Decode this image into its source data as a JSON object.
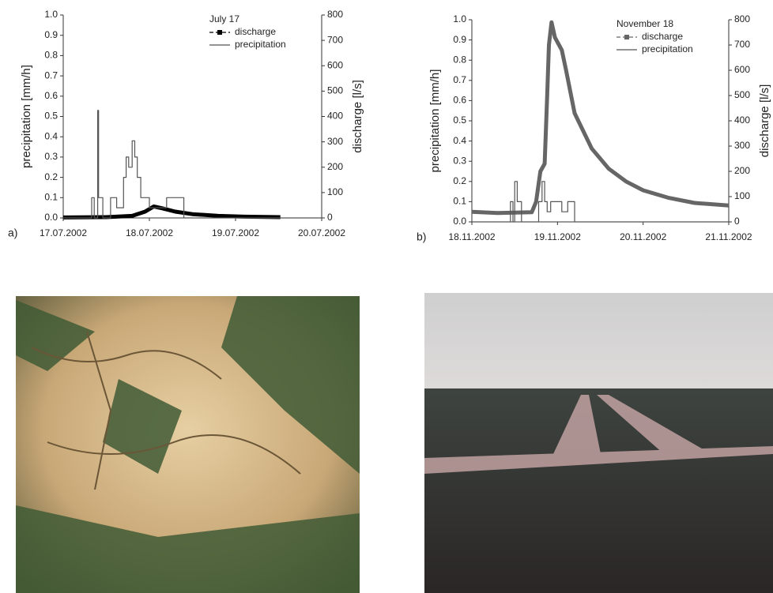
{
  "chart_data": [
    {
      "type": "line",
      "title": "July 17",
      "panel_label": "a)",
      "ylabel": "precipitation [mm/h]",
      "y2label": "discharge  [l/s]",
      "xlim": [
        0,
        3
      ],
      "xticks": [
        {
          "value": 0,
          "label": "17.07.2002"
        },
        {
          "value": 1,
          "label": "18.07.2002"
        },
        {
          "value": 2,
          "label": "19.07.2002"
        },
        {
          "value": 3,
          "label": "20.07.2002"
        }
      ],
      "ylim": [
        0,
        1
      ],
      "yticks": [
        {
          "value": 0,
          "label": "0.0"
        },
        0.1,
        0.2,
        0.3,
        0.4,
        0.5,
        0.6,
        0.7,
        0.8,
        0.9,
        {
          "value": 1,
          "label": "1.0"
        }
      ],
      "y2lim": [
        0,
        800
      ],
      "y2ticks": [
        0,
        100,
        200,
        300,
        400,
        500,
        600,
        700,
        800
      ],
      "legend": "upper right",
      "series": [
        {
          "name": "discharge",
          "color": "#000000",
          "axis": "y2",
          "x": [
            0,
            0.5,
            0.8,
            0.95,
            1.05,
            1.15,
            1.3,
            1.5,
            1.8,
            2.1,
            2.52
          ],
          "values": [
            2,
            3,
            8,
            25,
            45,
            38,
            25,
            15,
            8,
            5,
            3
          ]
        },
        {
          "name": "precipitation",
          "color": "#555555",
          "x": [
            0,
            0.33,
            0.33,
            0.36,
            0.36,
            0.4,
            0.4,
            0.41,
            0.41,
            0.46,
            0.46,
            0.55,
            0.55,
            0.62,
            0.62,
            0.7,
            0.7,
            0.73,
            0.73,
            0.76,
            0.76,
            0.8,
            0.8,
            0.83,
            0.83,
            0.86,
            0.86,
            0.9,
            0.9,
            1.0,
            1.0,
            1.2,
            1.2,
            1.4,
            1.4,
            3.0
          ],
          "values": [
            0,
            0,
            0.1,
            0.1,
            0,
            0,
            0.53,
            0.53,
            0.1,
            0.1,
            0,
            0,
            0.1,
            0.1,
            0.05,
            0.05,
            0.2,
            0.2,
            0.3,
            0.3,
            0.25,
            0.25,
            0.38,
            0.38,
            0.3,
            0.3,
            0.2,
            0.2,
            0.1,
            0.1,
            0.05,
            0.05,
            0.1,
            0.1,
            0,
            0
          ]
        }
      ]
    },
    {
      "type": "line",
      "title": "November 18",
      "panel_label": "b)",
      "ylabel": "precipitation [mm/h]",
      "y2label": "discharge [l/s]",
      "xlim": [
        0,
        3
      ],
      "xticks": [
        {
          "value": 0,
          "label": "18.11.2002"
        },
        {
          "value": 1,
          "label": "19.11.2002"
        },
        {
          "value": 2,
          "label": "20.11.2002"
        },
        {
          "value": 3,
          "label": "21.11.2002"
        }
      ],
      "ylim": [
        0,
        1
      ],
      "yticks": [
        {
          "value": 0,
          "label": "0.0"
        },
        0.1,
        0.2,
        0.3,
        0.4,
        0.5,
        0.6,
        0.7,
        0.8,
        0.9,
        {
          "value": 1,
          "label": "1.0"
        }
      ],
      "y2lim": [
        0,
        800
      ],
      "y2ticks": [
        0,
        100,
        200,
        300,
        400,
        500,
        600,
        700,
        800
      ],
      "legend": "upper right",
      "series": [
        {
          "name": "discharge",
          "color": "#666666",
          "axis": "y2",
          "x": [
            0,
            0.3,
            0.7,
            0.75,
            0.8,
            0.85,
            0.88,
            0.9,
            0.93,
            0.97,
            1.05,
            1.1,
            1.2,
            1.4,
            1.6,
            1.8,
            2.0,
            2.3,
            2.6,
            3.0
          ],
          "values": [
            40,
            35,
            38,
            80,
            200,
            230,
            500,
            700,
            790,
            730,
            680,
            600,
            430,
            290,
            210,
            160,
            125,
            95,
            75,
            65
          ]
        },
        {
          "name": "precipitation",
          "color": "#555555",
          "x": [
            0,
            0.45,
            0.45,
            0.48,
            0.48,
            0.5,
            0.5,
            0.53,
            0.53,
            0.58,
            0.58,
            0.78,
            0.78,
            0.82,
            0.82,
            0.85,
            0.85,
            0.88,
            0.88,
            0.92,
            0.92,
            1.05,
            1.05,
            1.12,
            1.12,
            1.2,
            1.2,
            3.0
          ],
          "values": [
            0,
            0,
            0.1,
            0.1,
            0,
            0,
            0.2,
            0.2,
            0.1,
            0.1,
            0,
            0,
            0.1,
            0.1,
            0.2,
            0.2,
            0.1,
            0.1,
            0.05,
            0.05,
            0.1,
            0.1,
            0.05,
            0.05,
            0.1,
            0.1,
            0,
            0
          ]
        }
      ]
    }
  ]
}
